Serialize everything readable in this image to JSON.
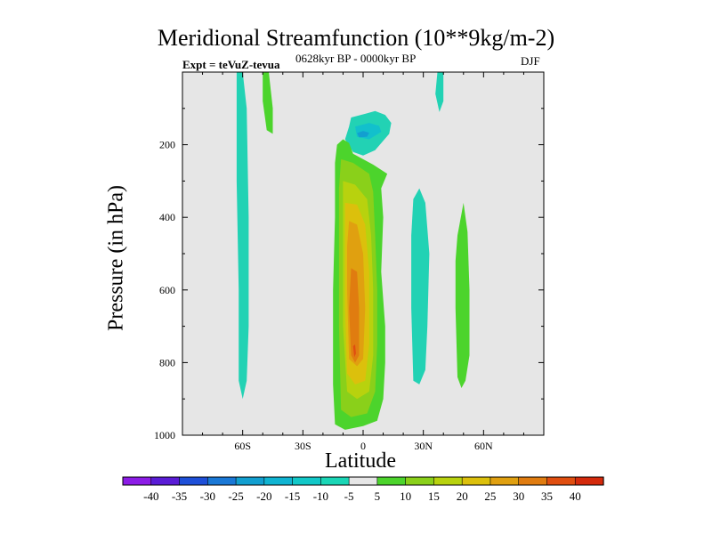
{
  "chart_data": {
    "type": "heatmap",
    "title": "Meridional Streamfunction (10**9kg/m-2)",
    "subtitle_left": "Expt = teVuZ-tevua",
    "subtitle_center": "0628kyr BP - 0000kyr BP",
    "subtitle_right": "DJF",
    "xlabel": "Latitude",
    "ylabel": "Pressure (in hPa)",
    "xlim": [
      -90,
      90
    ],
    "ylim": [
      0,
      1000
    ],
    "y_inverted": true,
    "x_ticks": [
      {
        "value": -60,
        "label": "60S"
      },
      {
        "value": -30,
        "label": "30S"
      },
      {
        "value": 0,
        "label": "0"
      },
      {
        "value": 30,
        "label": "30N"
      },
      {
        "value": 60,
        "label": "60N"
      }
    ],
    "y_ticks": [
      {
        "value": 200,
        "label": "200"
      },
      {
        "value": 400,
        "label": "400"
      },
      {
        "value": 600,
        "label": "600"
      },
      {
        "value": 800,
        "label": "800"
      },
      {
        "value": 1000,
        "label": "1000"
      }
    ],
    "background_color": "#e6e6e6",
    "colorbar": {
      "labels": [
        "-40",
        "-35",
        "-30",
        "-25",
        "-20",
        "-15",
        "-10",
        "-5",
        "5",
        "10",
        "15",
        "20",
        "25",
        "30",
        "35",
        "40"
      ],
      "colors": [
        "#8c1ce6",
        "#5a1cd6",
        "#1e4fd8",
        "#1a78d6",
        "#129fd0",
        "#10b4d2",
        "#12c8c8",
        "#1ad6b6",
        "#e6e6e6",
        "#4cd42c",
        "#8ad01a",
        "#b8d20e",
        "#dcc00c",
        "#e0a010",
        "#e07c10",
        "#e04e10",
        "#d42a0c"
      ]
    },
    "regions": [
      {
        "level": "-10",
        "color": "#22d2b4",
        "points": [
          [
            -63,
            0
          ],
          [
            -60,
            0
          ],
          [
            -58,
            100
          ],
          [
            -57,
            400
          ],
          [
            -57,
            700
          ],
          [
            -58,
            850
          ],
          [
            -60,
            900
          ],
          [
            -62,
            850
          ],
          [
            -62,
            600
          ],
          [
            -63,
            300
          ]
        ]
      },
      {
        "level": "10",
        "color": "#4cd42c",
        "points": [
          [
            -50,
            0
          ],
          [
            -47,
            0
          ],
          [
            -45,
            100
          ],
          [
            -45,
            170
          ],
          [
            -48,
            160
          ],
          [
            -50,
            80
          ]
        ]
      },
      {
        "level": "-10",
        "color": "#22d2b4",
        "points": [
          [
            37,
            0
          ],
          [
            40,
            0
          ],
          [
            40,
            80
          ],
          [
            38,
            110
          ],
          [
            36,
            60
          ]
        ]
      },
      {
        "level": "-10",
        "color": "#22d2b4",
        "points": [
          [
            -6,
            125
          ],
          [
            1,
            115
          ],
          [
            6,
            107
          ],
          [
            11,
            118
          ],
          [
            14,
            140
          ],
          [
            13,
            170
          ],
          [
            6,
            215
          ],
          [
            0,
            230
          ],
          [
            -5,
            220
          ],
          [
            -9,
            185
          ],
          [
            -7,
            150
          ]
        ]
      },
      {
        "level": "-15",
        "color": "#12c0cc",
        "points": [
          [
            -4,
            150
          ],
          [
            3,
            140
          ],
          [
            8,
            148
          ],
          [
            9,
            165
          ],
          [
            3,
            185
          ],
          [
            -3,
            178
          ]
        ]
      },
      {
        "level": "-20",
        "color": "#129fd0",
        "points": [
          [
            -3,
            168
          ],
          [
            0,
            162
          ],
          [
            3,
            167
          ],
          [
            2,
            178
          ],
          [
            -2,
            180
          ]
        ]
      },
      {
        "level": "10",
        "color": "#4cd42c",
        "points": [
          [
            -13,
            200
          ],
          [
            -10,
            185
          ],
          [
            -7,
            195
          ],
          [
            -5,
            225
          ],
          [
            5,
            255
          ],
          [
            12,
            280
          ],
          [
            9,
            320
          ],
          [
            10,
            400
          ],
          [
            9,
            550
          ],
          [
            11,
            700
          ],
          [
            11,
            800
          ],
          [
            10,
            900
          ],
          [
            7,
            960
          ],
          [
            0,
            975
          ],
          [
            -9,
            985
          ],
          [
            -14,
            970
          ],
          [
            -15,
            860
          ],
          [
            -15,
            600
          ],
          [
            -14,
            400
          ],
          [
            -14,
            250
          ]
        ]
      },
      {
        "level": "15",
        "color": "#8ad01a",
        "points": [
          [
            -11,
            240
          ],
          [
            -5,
            250
          ],
          [
            3,
            280
          ],
          [
            5,
            330
          ],
          [
            6,
            450
          ],
          [
            7,
            600
          ],
          [
            7,
            750
          ],
          [
            6,
            880
          ],
          [
            2,
            940
          ],
          [
            -6,
            950
          ],
          [
            -11,
            930
          ],
          [
            -12,
            700
          ],
          [
            -12,
            450
          ],
          [
            -12,
            320
          ]
        ]
      },
      {
        "level": "20",
        "color": "#b8d20e",
        "points": [
          [
            -10,
            300
          ],
          [
            -4,
            310
          ],
          [
            2,
            350
          ],
          [
            4,
            450
          ],
          [
            5,
            600
          ],
          [
            5,
            780
          ],
          [
            3,
            880
          ],
          [
            -3,
            900
          ],
          [
            -8,
            880
          ],
          [
            -10,
            700
          ],
          [
            -10,
            450
          ]
        ]
      },
      {
        "level": "25",
        "color": "#dcc00c",
        "points": [
          [
            -9,
            360
          ],
          [
            -3,
            365
          ],
          [
            1,
            420
          ],
          [
            3,
            550
          ],
          [
            3,
            750
          ],
          [
            1,
            850
          ],
          [
            -4,
            860
          ],
          [
            -8,
            830
          ],
          [
            -9,
            650
          ],
          [
            -9,
            450
          ]
        ]
      },
      {
        "level": "30",
        "color": "#e0a010",
        "points": [
          [
            -7,
            410
          ],
          [
            -3,
            420
          ],
          [
            0,
            500
          ],
          [
            1,
            650
          ],
          [
            0,
            790
          ],
          [
            -3,
            810
          ],
          [
            -7,
            790
          ],
          [
            -8,
            600
          ],
          [
            -8,
            480
          ]
        ]
      },
      {
        "level": "35",
        "color": "#e07c10",
        "points": [
          [
            -6,
            540
          ],
          [
            -3,
            550
          ],
          [
            -2,
            650
          ],
          [
            -2,
            780
          ],
          [
            -4,
            800
          ],
          [
            -6,
            780
          ],
          [
            -7,
            650
          ]
        ]
      },
      {
        "level": "40",
        "color": "#e04e10",
        "points": [
          [
            -5,
            755
          ],
          [
            -4,
            750
          ],
          [
            -3.6,
            775
          ],
          [
            -4.4,
            785
          ]
        ]
      },
      {
        "level": "-10",
        "color": "#22d2b4",
        "points": [
          [
            25,
            350
          ],
          [
            28,
            320
          ],
          [
            31,
            360
          ],
          [
            33,
            500
          ],
          [
            32,
            700
          ],
          [
            31,
            820
          ],
          [
            28,
            860
          ],
          [
            25,
            850
          ],
          [
            24,
            650
          ],
          [
            24,
            450
          ]
        ]
      },
      {
        "level": "10",
        "color": "#4cd42c",
        "points": [
          [
            47,
            450
          ],
          [
            50,
            360
          ],
          [
            52,
            440
          ],
          [
            53,
            600
          ],
          [
            53,
            780
          ],
          [
            51,
            850
          ],
          [
            49,
            870
          ],
          [
            47,
            840
          ],
          [
            46,
            650
          ],
          [
            46,
            520
          ]
        ]
      }
    ]
  }
}
